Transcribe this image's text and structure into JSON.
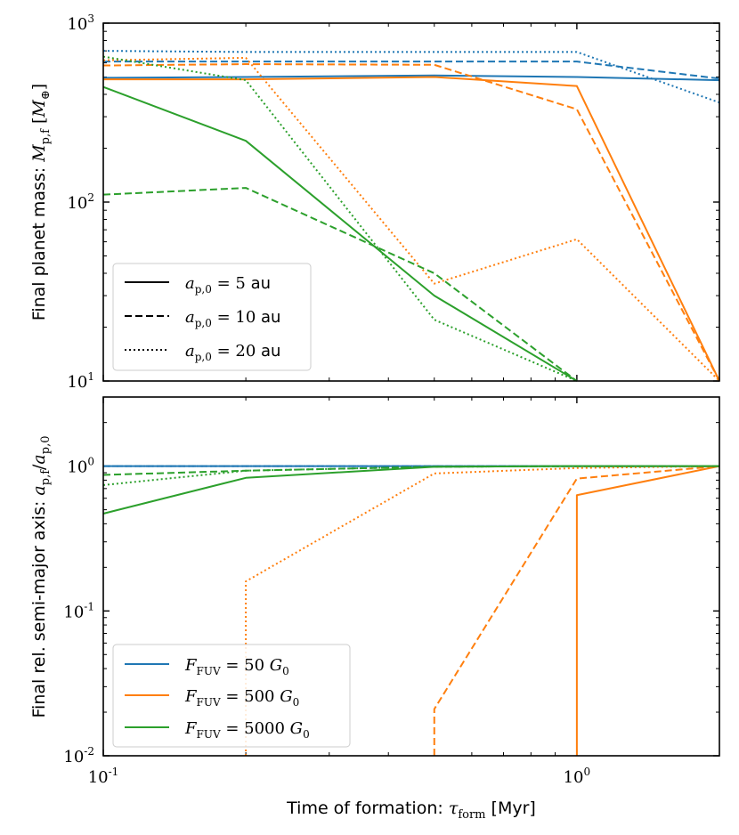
{
  "figure": {
    "xlabel": "Time of formation: τ_form [Myr]"
  },
  "chart_data": [
    {
      "type": "line",
      "panel": "top",
      "ylabel": "Final planet mass: M_p,f [M⊕]",
      "xscale": "log",
      "yscale": "log",
      "xlim": [
        0.1,
        2.0
      ],
      "ylim": [
        10,
        1000
      ],
      "ytick_labels": [
        "10^1",
        "10^2",
        "10^3"
      ],
      "ytick_values": [
        10,
        100,
        1000
      ],
      "legend": {
        "location": "lower-left",
        "entries": [
          {
            "label": "a_p,0 = 5 au",
            "style": "solid"
          },
          {
            "label": "a_p,0 = 10 au",
            "style": "dashed"
          },
          {
            "label": "a_p,0 = 20 au",
            "style": "dotted"
          }
        ]
      },
      "series": [
        {
          "name": "F_FUV = 50 G0, a_p,0 = 5 au",
          "color": "#1f77b4",
          "style": "solid",
          "x": [
            0.1,
            0.2,
            0.5,
            1.0,
            2.0
          ],
          "y": [
            495,
            500,
            510,
            500,
            480
          ]
        },
        {
          "name": "F_FUV = 50 G0, a_p,0 = 10 au",
          "color": "#1f77b4",
          "style": "dashed",
          "x": [
            0.1,
            0.2,
            0.5,
            1.0,
            2.0
          ],
          "y": [
            610,
            610,
            610,
            610,
            490
          ]
        },
        {
          "name": "F_FUV = 50 G0, a_p,0 = 20 au",
          "color": "#1f77b4",
          "style": "dotted",
          "x": [
            0.1,
            0.2,
            0.5,
            1.0,
            2.0
          ],
          "y": [
            700,
            690,
            690,
            690,
            360
          ]
        },
        {
          "name": "F_FUV = 500 G0, a_p,0 = 5 au",
          "color": "#ff7f0e",
          "style": "solid",
          "x": [
            0.1,
            0.2,
            0.5,
            1.0,
            2.0
          ],
          "y": [
            485,
            485,
            500,
            445,
            10
          ]
        },
        {
          "name": "F_FUV = 500 G0, a_p,0 = 10 au",
          "color": "#ff7f0e",
          "style": "dashed",
          "x": [
            0.1,
            0.2,
            0.5,
            1.0,
            2.0
          ],
          "y": [
            580,
            590,
            585,
            330,
            10
          ]
        },
        {
          "name": "F_FUV = 500 G0, a_p,0 = 20 au",
          "color": "#ff7f0e",
          "style": "dotted",
          "x": [
            0.1,
            0.2,
            0.5,
            1.0,
            2.0
          ],
          "y": [
            620,
            640,
            35,
            62,
            10
          ]
        },
        {
          "name": "F_FUV = 5000 G0, a_p,0 = 5 au",
          "color": "#2ca02c",
          "style": "solid",
          "x": [
            0.1,
            0.2,
            0.5,
            1.0
          ],
          "y": [
            440,
            220,
            30,
            10
          ]
        },
        {
          "name": "F_FUV = 5000 G0, a_p,0 = 10 au",
          "color": "#2ca02c",
          "style": "dashed",
          "x": [
            0.1,
            0.2,
            0.5,
            1.0
          ],
          "y": [
            110,
            120,
            40,
            10
          ]
        },
        {
          "name": "F_FUV = 5000 G0, a_p,0 = 20 au",
          "color": "#2ca02c",
          "style": "dotted",
          "x": [
            0.1,
            0.2,
            0.5,
            1.0
          ],
          "y": [
            650,
            480,
            22,
            10
          ]
        }
      ]
    },
    {
      "type": "line",
      "panel": "bottom",
      "ylabel": "Final rel. semi-major axis: a_p,f / a_p,0",
      "xscale": "log",
      "yscale": "log",
      "xlim": [
        0.1,
        2.0
      ],
      "ylim": [
        0.01,
        3.0
      ],
      "ytick_labels": [
        "10^-2",
        "10^-1",
        "10^0"
      ],
      "ytick_values": [
        0.01,
        0.1,
        1
      ],
      "xtick_labels": [
        "10^-1",
        "10^0"
      ],
      "xtick_values": [
        0.1,
        1
      ],
      "legend": {
        "location": "lower-left",
        "entries": [
          {
            "label": "F_FUV = 50 G0",
            "color": "#1f77b4"
          },
          {
            "label": "F_FUV = 500 G0",
            "color": "#ff7f0e"
          },
          {
            "label": "F_FUV = 5000 G0",
            "color": "#2ca02c"
          }
        ]
      },
      "series": [
        {
          "name": "F_FUV = 50 G0, a_p,0 = 5 au",
          "color": "#1f77b4",
          "style": "solid",
          "x": [
            0.1,
            2.0
          ],
          "y": [
            1.0,
            1.0
          ]
        },
        {
          "name": "F_FUV = 50 G0, a_p,0 = 10 au",
          "color": "#1f77b4",
          "style": "dashed",
          "x": [
            0.1,
            2.0
          ],
          "y": [
            1.0,
            1.0
          ]
        },
        {
          "name": "F_FUV = 50 G0, a_p,0 = 20 au",
          "color": "#1f77b4",
          "style": "dotted",
          "x": [
            0.1,
            2.0
          ],
          "y": [
            1.0,
            1.0
          ]
        },
        {
          "name": "F_FUV = 500 G0, a_p,0 = 5 au",
          "color": "#ff7f0e",
          "style": "solid",
          "x": [
            1.0,
            1.0,
            2.0
          ],
          "y": [
            0.01,
            0.63,
            1.0
          ]
        },
        {
          "name": "F_FUV = 500 G0, a_p,0 = 10 au",
          "color": "#ff7f0e",
          "style": "dashed",
          "x": [
            0.5,
            0.5,
            1.0,
            2.0
          ],
          "y": [
            0.01,
            0.021,
            0.82,
            1.0
          ]
        },
        {
          "name": "F_FUV = 500 G0, a_p,0 = 20 au",
          "color": "#ff7f0e",
          "style": "dotted",
          "x": [
            0.2,
            0.2,
            0.5,
            1.0,
            2.0
          ],
          "y": [
            0.01,
            0.16,
            0.89,
            0.97,
            1.0
          ]
        },
        {
          "name": "F_FUV = 5000 G0, a_p,0 = 5 au",
          "color": "#2ca02c",
          "style": "solid",
          "x": [
            0.1,
            0.2,
            0.5,
            1.0,
            2.0
          ],
          "y": [
            0.47,
            0.83,
            0.99,
            1.0,
            1.0
          ]
        },
        {
          "name": "F_FUV = 5000 G0, a_p,0 = 10 au",
          "color": "#2ca02c",
          "style": "dashed",
          "x": [
            0.1,
            0.2,
            0.5,
            1.0,
            2.0
          ],
          "y": [
            0.87,
            0.93,
            0.99,
            1.0,
            1.0
          ]
        },
        {
          "name": "F_FUV = 5000 G0, a_p,0 = 20 au",
          "color": "#2ca02c",
          "style": "dotted",
          "x": [
            0.1,
            0.2,
            0.5,
            1.0,
            2.0
          ],
          "y": [
            0.74,
            0.93,
            0.99,
            1.0,
            1.0
          ]
        }
      ]
    }
  ]
}
